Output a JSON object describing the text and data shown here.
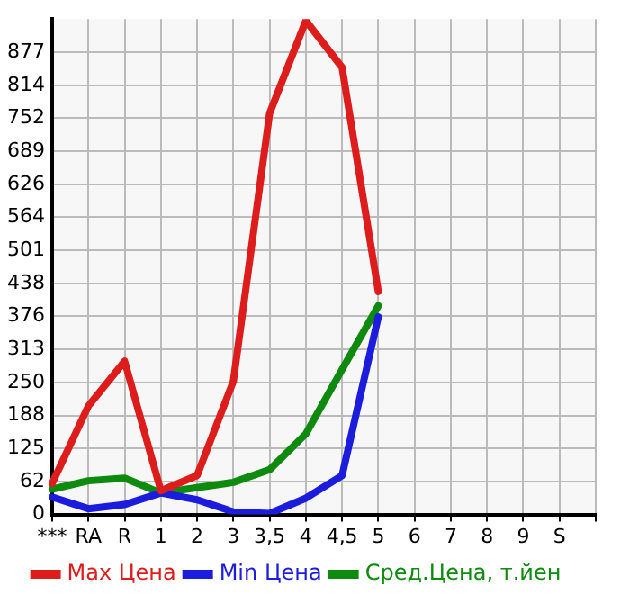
{
  "chart_data": {
    "type": "line",
    "categories": [
      "***",
      "RA",
      "R",
      "1",
      "2",
      "3",
      "3,5",
      "4",
      "4,5",
      "5",
      "6",
      "7",
      "8",
      "9",
      "S",
      null
    ],
    "series": [
      {
        "name": "Max Цена",
        "color": "#dd1c1c",
        "values": [
          59,
          206,
          291,
          45,
          74,
          253,
          761,
          937,
          848,
          423,
          null,
          null,
          null,
          null,
          null,
          null
        ]
      },
      {
        "name": "Min Цена",
        "color": "#1c1cdd",
        "values": [
          33,
          11,
          19,
          41,
          28,
          5,
          2,
          31,
          74,
          375,
          null,
          null,
          null,
          null,
          null,
          null
        ]
      },
      {
        "name": "Сред.Цена, т.йен",
        "color": "#0e8a0e",
        "values": [
          48,
          64,
          69,
          41,
          51,
          61,
          85,
          153,
          275,
          396,
          null,
          null,
          null,
          null,
          null,
          null
        ]
      }
    ],
    "ylim": [
      0,
      940
    ],
    "yticks": [
      0,
      62,
      125,
      188,
      250,
      313,
      376,
      438,
      501,
      564,
      626,
      689,
      752,
      814,
      877
    ],
    "grid": true,
    "legend": "bottom",
    "marker": "none",
    "line_style": "solid"
  }
}
